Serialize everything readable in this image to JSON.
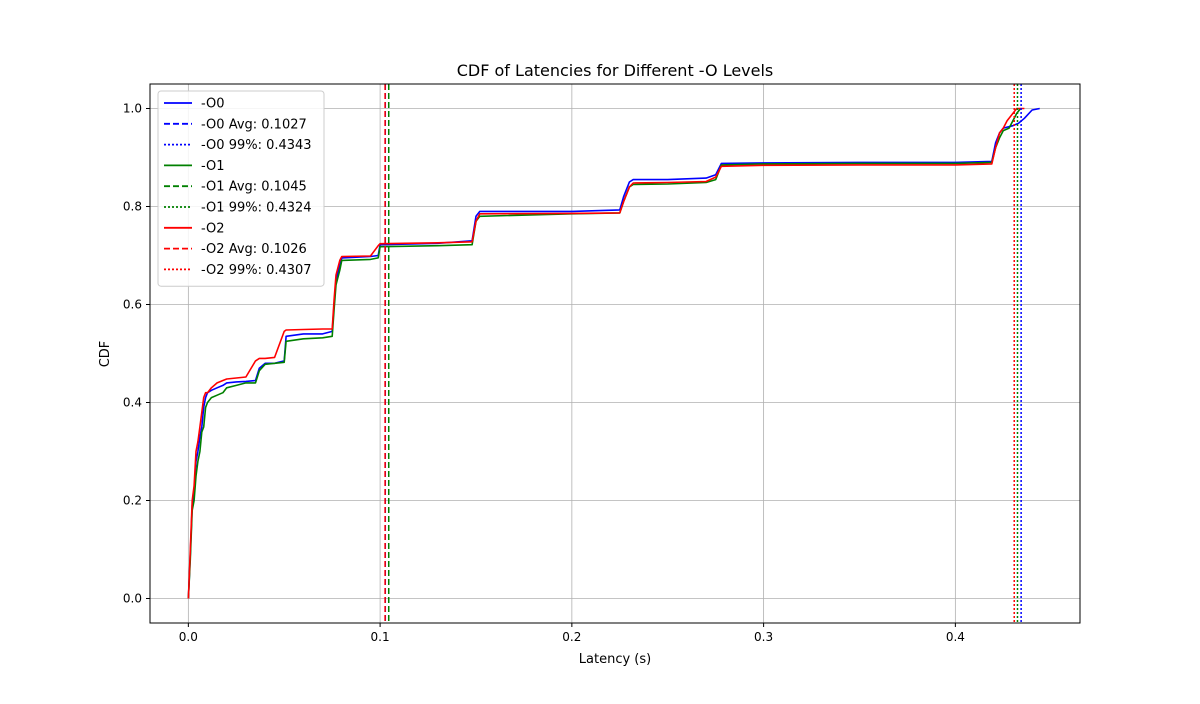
{
  "chart_data": {
    "type": "line",
    "title": "CDF of Latencies for Different -O Levels",
    "xlabel": "Latency (s)",
    "ylabel": "CDF",
    "xlim": [
      -0.02,
      0.465
    ],
    "ylim": [
      -0.05,
      1.05
    ],
    "xticks": [
      0.0,
      0.1,
      0.2,
      0.3,
      0.4
    ],
    "xtick_labels": [
      "0.0",
      "0.1",
      "0.2",
      "0.3",
      "0.4"
    ],
    "yticks": [
      0.0,
      0.2,
      0.4,
      0.6,
      0.8,
      1.0
    ],
    "ytick_labels": [
      "0.0",
      "0.2",
      "0.4",
      "0.6",
      "0.8",
      "1.0"
    ],
    "grid": true,
    "legend_position": "upper-left",
    "series": [
      {
        "name": "-O0",
        "color": "#0000ff",
        "avg_label": "-O0 Avg: 0.1027",
        "p99_label": "-O0 99%: 0.4343",
        "avg": 0.1027,
        "p99": 0.4343,
        "x": [
          0.0,
          0.001,
          0.002,
          0.003,
          0.004,
          0.005,
          0.006,
          0.007,
          0.008,
          0.009,
          0.01,
          0.012,
          0.015,
          0.018,
          0.02,
          0.025,
          0.03,
          0.035,
          0.037,
          0.04,
          0.045,
          0.05,
          0.051,
          0.06,
          0.07,
          0.075,
          0.076,
          0.077,
          0.079,
          0.08,
          0.095,
          0.099,
          0.1,
          0.13,
          0.148,
          0.15,
          0.152,
          0.2,
          0.225,
          0.227,
          0.23,
          0.232,
          0.25,
          0.27,
          0.275,
          0.278,
          0.3,
          0.35,
          0.4,
          0.419,
          0.421,
          0.423,
          0.425,
          0.43,
          0.433,
          0.436,
          0.44,
          0.444
        ],
        "y": [
          0.0,
          0.09,
          0.19,
          0.22,
          0.28,
          0.3,
          0.33,
          0.35,
          0.39,
          0.41,
          0.42,
          0.425,
          0.43,
          0.435,
          0.44,
          0.442,
          0.443,
          0.445,
          0.47,
          0.48,
          0.48,
          0.485,
          0.535,
          0.54,
          0.54,
          0.545,
          0.6,
          0.65,
          0.68,
          0.695,
          0.698,
          0.7,
          0.722,
          0.725,
          0.73,
          0.78,
          0.79,
          0.79,
          0.793,
          0.82,
          0.85,
          0.855,
          0.855,
          0.858,
          0.865,
          0.888,
          0.889,
          0.89,
          0.89,
          0.892,
          0.93,
          0.95,
          0.96,
          0.965,
          0.97,
          0.98,
          0.997,
          1.0
        ]
      },
      {
        "name": "-O1",
        "color": "#008000",
        "avg_label": "-O1 Avg: 0.1045",
        "p99_label": "-O1 99%: 0.4324",
        "avg": 0.1045,
        "p99": 0.4324,
        "x": [
          0.0,
          0.001,
          0.002,
          0.003,
          0.004,
          0.005,
          0.006,
          0.007,
          0.008,
          0.009,
          0.01,
          0.012,
          0.015,
          0.018,
          0.02,
          0.025,
          0.03,
          0.035,
          0.037,
          0.04,
          0.045,
          0.05,
          0.051,
          0.06,
          0.07,
          0.075,
          0.076,
          0.077,
          0.079,
          0.08,
          0.095,
          0.099,
          0.1,
          0.13,
          0.148,
          0.15,
          0.152,
          0.2,
          0.225,
          0.227,
          0.23,
          0.232,
          0.25,
          0.27,
          0.275,
          0.278,
          0.3,
          0.35,
          0.4,
          0.419,
          0.421,
          0.423,
          0.425,
          0.428,
          0.43,
          0.432,
          0.434
        ],
        "y": [
          0.0,
          0.08,
          0.18,
          0.2,
          0.25,
          0.28,
          0.3,
          0.34,
          0.35,
          0.39,
          0.4,
          0.41,
          0.415,
          0.42,
          0.43,
          0.435,
          0.44,
          0.44,
          0.465,
          0.478,
          0.48,
          0.482,
          0.525,
          0.53,
          0.532,
          0.535,
          0.59,
          0.64,
          0.67,
          0.69,
          0.692,
          0.695,
          0.718,
          0.72,
          0.722,
          0.77,
          0.78,
          0.785,
          0.787,
          0.81,
          0.84,
          0.845,
          0.846,
          0.849,
          0.855,
          0.885,
          0.887,
          0.888,
          0.888,
          0.89,
          0.92,
          0.94,
          0.955,
          0.96,
          0.975,
          0.99,
          1.0
        ]
      },
      {
        "name": "-O2",
        "color": "#ff0000",
        "avg_label": "-O2 Avg: 0.1026",
        "p99_label": "-O2 99%: 0.4307",
        "avg": 0.1026,
        "p99": 0.4307,
        "x": [
          0.0,
          0.001,
          0.002,
          0.003,
          0.004,
          0.005,
          0.006,
          0.007,
          0.008,
          0.009,
          0.01,
          0.012,
          0.015,
          0.018,
          0.02,
          0.025,
          0.03,
          0.035,
          0.037,
          0.04,
          0.045,
          0.05,
          0.051,
          0.06,
          0.07,
          0.075,
          0.076,
          0.077,
          0.079,
          0.08,
          0.095,
          0.099,
          0.1,
          0.13,
          0.148,
          0.15,
          0.152,
          0.2,
          0.225,
          0.227,
          0.23,
          0.232,
          0.25,
          0.27,
          0.275,
          0.278,
          0.3,
          0.35,
          0.4,
          0.419,
          0.421,
          0.423,
          0.425,
          0.427,
          0.43,
          0.432,
          0.436
        ],
        "y": [
          0.0,
          0.1,
          0.2,
          0.23,
          0.3,
          0.32,
          0.35,
          0.38,
          0.41,
          0.42,
          0.42,
          0.43,
          0.44,
          0.445,
          0.448,
          0.45,
          0.452,
          0.485,
          0.49,
          0.49,
          0.492,
          0.545,
          0.548,
          0.549,
          0.55,
          0.55,
          0.61,
          0.66,
          0.69,
          0.698,
          0.699,
          0.72,
          0.724,
          0.726,
          0.728,
          0.77,
          0.785,
          0.786,
          0.787,
          0.81,
          0.84,
          0.848,
          0.849,
          0.851,
          0.86,
          0.882,
          0.884,
          0.885,
          0.885,
          0.887,
          0.92,
          0.95,
          0.96,
          0.975,
          0.99,
          1.0,
          1.0
        ]
      }
    ]
  }
}
